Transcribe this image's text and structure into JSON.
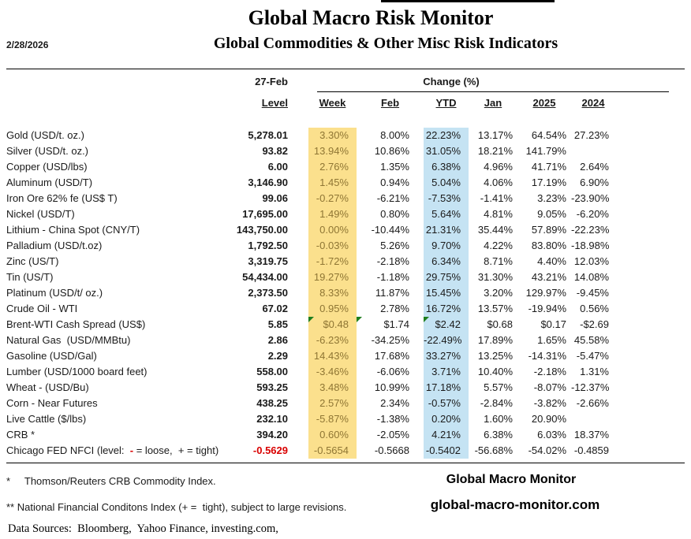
{
  "colors": {
    "week_bg": "#FBE08D",
    "week_text": "#8F7634",
    "ytd_bg": "#C5E3F3",
    "red": "#D90000",
    "marker_green": "#1E7E1E"
  },
  "header": {
    "date": "2/28/2026",
    "title": "Global Macro Risk Monitor",
    "subtitle": "Global Commodities & Other Misc Risk Indicators"
  },
  "table": {
    "header": {
      "date_col": "27-Feb",
      "level": "Level",
      "change": "Change (%)",
      "cols": [
        "Week",
        "Feb",
        "YTD",
        "Jan",
        "2025",
        "2024"
      ]
    },
    "rows": [
      {
        "label": "Gold (USD/t. oz.)",
        "level": "5,278.01",
        "week": "3.30%",
        "feb": "8.00%",
        "ytd": "22.23%",
        "jan": "13.17%",
        "y2025": "64.54%",
        "y2024": "27.23%"
      },
      {
        "label": "Silver (USD/t. oz.)",
        "level": "93.82",
        "week": "13.94%",
        "feb": "10.86%",
        "ytd": "31.05%",
        "jan": "18.21%",
        "y2025": "141.79%",
        "y2024": ""
      },
      {
        "label": "Copper (USD/lbs)",
        "level": "6.00",
        "week": "2.76%",
        "feb": "1.35%",
        "ytd": "6.38%",
        "jan": "4.96%",
        "y2025": "41.71%",
        "y2024": "2.64%"
      },
      {
        "label": "Aluminum (USD/T)",
        "level": "3,146.90",
        "week": "1.45%",
        "feb": "0.94%",
        "ytd": "5.04%",
        "jan": "4.06%",
        "y2025": "17.19%",
        "y2024": "6.90%"
      },
      {
        "label": "Iron Ore 62% fe (US$ T)",
        "level": "99.06",
        "week": "-0.27%",
        "feb": "-6.21%",
        "ytd": "-7.53%",
        "jan": "-1.41%",
        "y2025": "3.23%",
        "y2024": "-23.90%"
      },
      {
        "label": "Nickel (USD/T)",
        "level": "17,695.00",
        "week": "1.49%",
        "feb": "0.80%",
        "ytd": "5.64%",
        "jan": "4.81%",
        "y2025": "9.05%",
        "y2024": "-6.20%"
      },
      {
        "label": "Lithium - China Spot (CNY/T)",
        "level": "143,750.00",
        "week": "0.00%",
        "feb": "-10.44%",
        "ytd": "21.31%",
        "jan": "35.44%",
        "y2025": "57.89%",
        "y2024": "-22.23%"
      },
      {
        "label": "Palladium (USD/t.oz)",
        "level": "1,792.50",
        "week": "-0.03%",
        "feb": "5.26%",
        "ytd": "9.70%",
        "jan": "4.22%",
        "y2025": "83.80%",
        "y2024": "-18.98%"
      },
      {
        "label": "Zinc (US/T)",
        "level": "3,319.75",
        "week": "-1.72%",
        "feb": "-2.18%",
        "ytd": "6.34%",
        "jan": "8.71%",
        "y2025": "4.40%",
        "y2024": "12.03%"
      },
      {
        "label": "Tin (US/T)",
        "level": "54,434.00",
        "week": "19.27%",
        "feb": "-1.18%",
        "ytd": "29.75%",
        "jan": "31.30%",
        "y2025": "43.21%",
        "y2024": "14.08%"
      },
      {
        "label": "Platinum (USD/t/ oz.)",
        "level": "2,373.50",
        "week": "8.33%",
        "feb": "11.87%",
        "ytd": "15.45%",
        "jan": "3.20%",
        "y2025": "129.97%",
        "y2024": "-9.45%"
      },
      {
        "label": "Crude Oil - WTI",
        "level": "67.02",
        "week": "0.95%",
        "feb": "2.78%",
        "ytd": "16.72%",
        "jan": "13.57%",
        "y2025": "-19.94%",
        "y2024": "0.56%"
      },
      {
        "label": "Brent-WTI Cash Spread (US$)",
        "level": "5.85",
        "week": "$0.48",
        "feb": "$1.74",
        "ytd": "$2.42",
        "jan": "$0.68",
        "y2025": "$0.17",
        "y2024": "-$2.69",
        "markers": [
          "week",
          "feb",
          "ytd"
        ]
      },
      {
        "label": "Natural Gas  (USD/MMBtu)",
        "level": "2.86",
        "week": "-6.23%",
        "feb": "-34.25%",
        "ytd": "-22.49%",
        "jan": "17.89%",
        "y2025": "1.65%",
        "y2024": "45.58%"
      },
      {
        "label": "Gasoline (USD/Gal)",
        "level": "2.29",
        "week": "14.43%",
        "feb": "17.68%",
        "ytd": "33.27%",
        "jan": "13.25%",
        "y2025": "-14.31%",
        "y2024": "-5.47%"
      },
      {
        "label": "Lumber (USD/1000 board feet)",
        "level": "558.00",
        "week": "-3.46%",
        "feb": "-6.06%",
        "ytd": "3.71%",
        "jan": "10.40%",
        "y2025": "-2.18%",
        "y2024": "1.31%"
      },
      {
        "label": "Wheat - (USD/Bu)",
        "level": "593.25",
        "week": "3.48%",
        "feb": "10.99%",
        "ytd": "17.18%",
        "jan": "5.57%",
        "y2025": "-8.07%",
        "y2024": "-12.37%"
      },
      {
        "label": "Corn - Near Futures",
        "level": "438.25",
        "week": "2.57%",
        "feb": "2.34%",
        "ytd": "-0.57%",
        "jan": "-2.84%",
        "y2025": "-3.82%",
        "y2024": "-2.66%"
      },
      {
        "label": "Live Cattle ($/lbs)",
        "level": "232.10",
        "week": "-5.87%",
        "feb": "-1.38%",
        "ytd": "0.20%",
        "jan": "1.60%",
        "y2025": "20.90%",
        "y2024": ""
      },
      {
        "label": "CRB *",
        "level": "394.20",
        "week": "0.60%",
        "feb": "-2.05%",
        "ytd": "4.21%",
        "jan": "6.38%",
        "y2025": "6.03%",
        "y2024": "18.37%"
      },
      {
        "label_parts": [
          "Chicago FED NFCI (level:  ",
          "-",
          " = loose,  + = tight)"
        ],
        "level": "-0.5629",
        "level_red": true,
        "week": "-0.5654",
        "feb": "-0.5668",
        "ytd": "-0.5402",
        "jan": "-56.68%",
        "y2025": "-54.02%",
        "y2024": "-0.4859"
      }
    ]
  },
  "footer": {
    "note1": "*     Thomson/Reuters CRB Commodity Index.",
    "note2": "** National Financial Conditons Index (+ =  tight), subject to large revisions.",
    "sources": "Data Sources:  Bloomberg,  Yahoo Finance, investing.com,",
    "brand": "Global Macro Monitor",
    "site": "global-macro-monitor.com"
  }
}
